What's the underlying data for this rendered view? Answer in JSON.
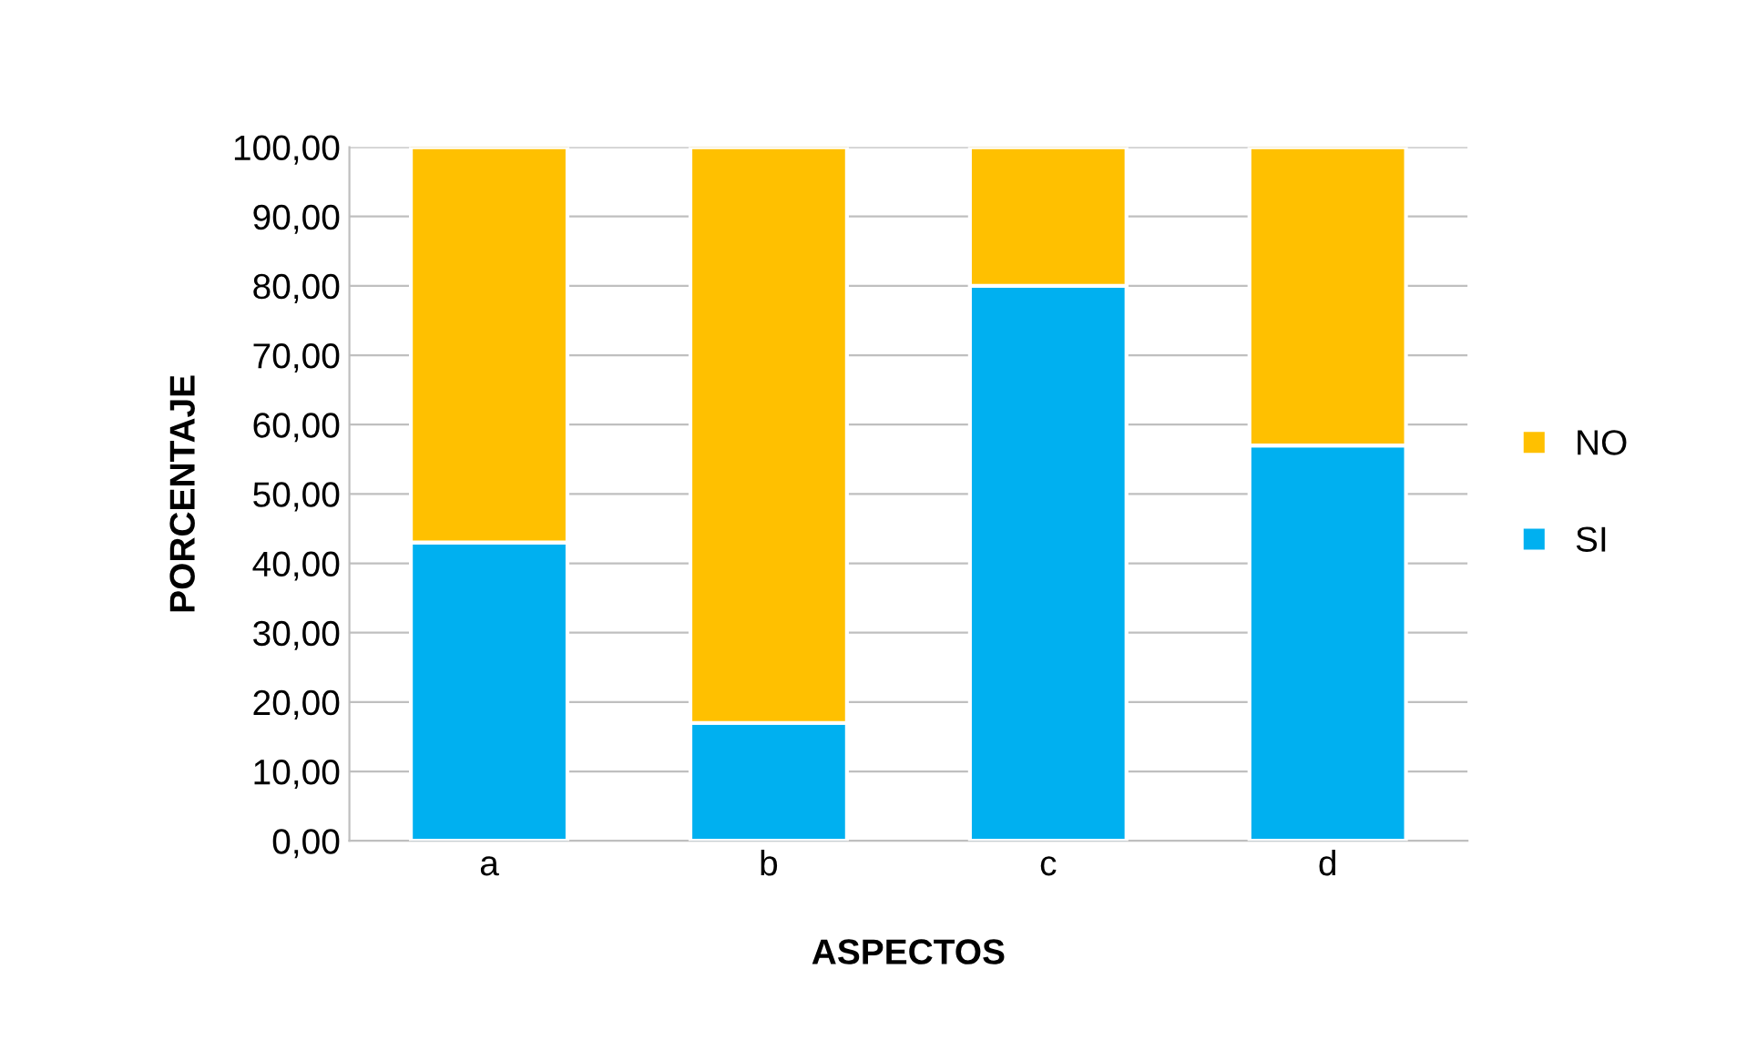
{
  "chart_data": {
    "type": "bar",
    "stacked": true,
    "xlabel": "ASPECTOS",
    "ylabel": "PORCENTAJE",
    "categories": [
      "a",
      "b",
      "c",
      "d"
    ],
    "series": [
      {
        "name": "SI",
        "color": "#00b0f0",
        "values": [
          43,
          17,
          80,
          57
        ]
      },
      {
        "name": "NO",
        "color": "#ffc000",
        "values": [
          57,
          83,
          20,
          43
        ]
      }
    ],
    "ylim": [
      0,
      100
    ],
    "yticks": [
      {
        "value": 0,
        "label": "0,00"
      },
      {
        "value": 10,
        "label": "10,00"
      },
      {
        "value": 20,
        "label": "20,00"
      },
      {
        "value": 30,
        "label": "30,00"
      },
      {
        "value": 40,
        "label": "40,00"
      },
      {
        "value": 50,
        "label": "50,00"
      },
      {
        "value": 60,
        "label": "60,00"
      },
      {
        "value": 70,
        "label": "70,00"
      },
      {
        "value": 80,
        "label": "80,00"
      },
      {
        "value": 90,
        "label": "90,00"
      },
      {
        "value": 100,
        "label": "100,00"
      }
    ],
    "grid": "y",
    "legend": "right"
  }
}
